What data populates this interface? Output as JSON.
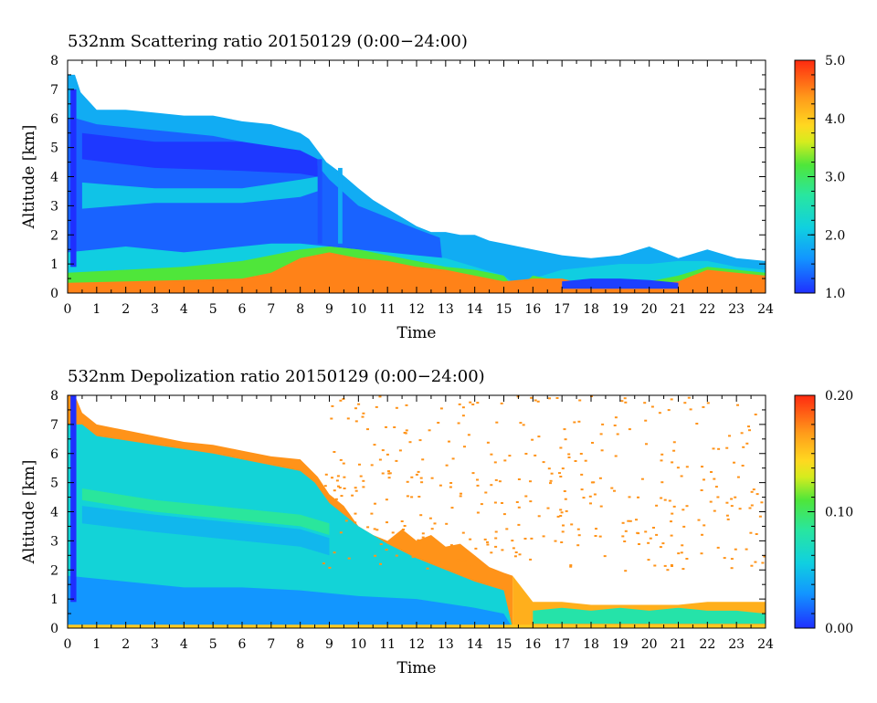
{
  "chart_data": [
    {
      "type": "heatmap",
      "title": "532nm Scattering ratio  20150129 (0:00−24:00)",
      "xlabel": "Time",
      "ylabel": "Altitude [km]",
      "xlim": [
        0,
        24
      ],
      "ylim": [
        0,
        8
      ],
      "x_ticks": [
        0,
        1,
        2,
        3,
        4,
        5,
        6,
        7,
        8,
        9,
        10,
        11,
        12,
        13,
        14,
        15,
        16,
        17,
        18,
        19,
        20,
        21,
        22,
        23,
        24
      ],
      "y_ticks": [
        0,
        1,
        2,
        3,
        4,
        5,
        6,
        7,
        8
      ],
      "colorbar": {
        "range": [
          1.0,
          5.0
        ],
        "ticks": [
          "1.0",
          "2.0",
          "3.0",
          "4.0",
          "5.0"
        ]
      },
      "layers": [
        {
          "kind": "top",
          "value": 1.8,
          "ts": [
            0,
            0.25,
            0.45,
            1,
            2,
            3,
            4,
            5,
            6,
            7,
            8,
            8.3,
            8.9,
            9.3,
            10,
            10.5,
            11,
            11.5,
            12,
            12.5,
            13,
            13.5,
            14,
            14.5,
            15,
            16,
            17,
            18,
            19,
            20,
            21,
            22,
            23,
            24
          ],
          "tops": [
            7.5,
            7.5,
            6.9,
            6.3,
            6.3,
            6.2,
            6.1,
            6.1,
            5.9,
            5.8,
            5.5,
            5.3,
            4.5,
            4.2,
            3.6,
            3.2,
            2.9,
            2.6,
            2.3,
            2.1,
            2.1,
            2.0,
            2.0,
            1.8,
            1.7,
            1.5,
            1.3,
            1.2,
            1.3,
            1.6,
            1.2,
            1.5,
            1.2,
            1.1
          ]
        },
        {
          "kind": "top",
          "value": 1.3,
          "ts": [
            0,
            0.3,
            1,
            3,
            5,
            7,
            8,
            8.5,
            9,
            10,
            11,
            12,
            12.8,
            13
          ],
          "tops": [
            6.0,
            6.0,
            5.8,
            5.6,
            5.4,
            5.0,
            4.9,
            4.5,
            3.9,
            3.0,
            2.6,
            2.2,
            1.9,
            0
          ]
        },
        {
          "kind": "band",
          "value": 1.05,
          "ts": [
            0.5,
            3,
            6,
            8,
            8.6
          ],
          "lo": [
            4.6,
            4.3,
            4.2,
            4.1,
            4.0
          ],
          "hi": [
            5.5,
            5.2,
            5.2,
            4.9,
            4.6
          ]
        },
        {
          "kind": "band",
          "value": 2.0,
          "ts": [
            0.5,
            3,
            6,
            8,
            8.6
          ],
          "lo": [
            2.9,
            3.1,
            3.1,
            3.3,
            3.5
          ],
          "hi": [
            3.8,
            3.6,
            3.6,
            3.9,
            4.0
          ]
        },
        {
          "kind": "top",
          "value": 2.1,
          "ts": [
            0,
            1,
            2,
            3,
            4,
            5,
            6,
            7,
            8,
            9,
            10,
            11,
            12,
            13,
            14,
            15,
            15.4,
            16,
            17,
            18,
            19,
            20,
            21,
            22,
            23,
            24
          ],
          "tops": [
            1.4,
            1.5,
            1.6,
            1.5,
            1.4,
            1.5,
            1.6,
            1.7,
            1.7,
            1.6,
            1.5,
            1.4,
            1.3,
            1.2,
            0.9,
            0.6,
            0.3,
            0.5,
            0.8,
            0.9,
            1.0,
            1.0,
            1.1,
            1.1,
            0.9,
            0.8
          ]
        },
        {
          "kind": "top",
          "value": 3.2,
          "ts": [
            0,
            2,
            4,
            6,
            7,
            8,
            9,
            10,
            11,
            12,
            13,
            14,
            15,
            15.4,
            16,
            17,
            18,
            19,
            20,
            21,
            22,
            23,
            24
          ],
          "tops": [
            0.7,
            0.8,
            0.9,
            1.1,
            1.3,
            1.5,
            1.6,
            1.5,
            1.3,
            1.1,
            0.9,
            0.8,
            0.6,
            0.1,
            0.6,
            0.4,
            0.4,
            0.4,
            0.4,
            0.6,
            0.9,
            0.8,
            0.7
          ]
        },
        {
          "kind": "top",
          "value": 4.5,
          "ts": [
            0,
            2,
            4,
            6,
            7,
            8,
            9,
            10,
            11,
            12,
            13,
            14,
            15,
            16,
            17,
            18,
            19,
            20,
            21,
            22,
            23,
            24
          ],
          "tops": [
            0.35,
            0.4,
            0.45,
            0.5,
            0.7,
            1.2,
            1.4,
            1.2,
            1.1,
            0.9,
            0.8,
            0.6,
            0.4,
            0.5,
            0.5,
            0.25,
            0.3,
            0.3,
            0.4,
            0.8,
            0.7,
            0.6
          ]
        },
        {
          "kind": "band",
          "value": 1.1,
          "ts": [
            17,
            18,
            19,
            20,
            21
          ],
          "lo": [
            0.15,
            0.15,
            0.15,
            0.15,
            0.15
          ],
          "hi": [
            0.4,
            0.5,
            0.5,
            0.45,
            0.35
          ]
        },
        {
          "kind": "vstrip",
          "value": 1.0,
          "t0": 0.1,
          "t1": 0.3,
          "lo": 0.9,
          "hi": 7.0
        },
        {
          "kind": "vstrip",
          "value": 1.2,
          "t0": 8.6,
          "t1": 8.75,
          "lo": 1.7,
          "hi": 4.6
        },
        {
          "kind": "vstrip",
          "value": 1.8,
          "t0": 9.3,
          "t1": 9.45,
          "lo": 1.7,
          "hi": 4.3
        }
      ]
    },
    {
      "type": "heatmap",
      "title": "532nm Depolization ratio  20150129 (0:00−24:00)",
      "xlabel": "Time",
      "ylabel": "Altitude [km]",
      "xlim": [
        0,
        24
      ],
      "ylim": [
        0,
        8
      ],
      "x_ticks": [
        0,
        1,
        2,
        3,
        4,
        5,
        6,
        7,
        8,
        9,
        10,
        11,
        12,
        13,
        14,
        15,
        16,
        17,
        18,
        19,
        20,
        21,
        22,
        23,
        24
      ],
      "y_ticks": [
        0,
        1,
        2,
        3,
        4,
        5,
        6,
        7,
        8
      ],
      "colorbar": {
        "range": [
          0.0,
          0.2
        ],
        "ticks": [
          "0.00",
          "0.10",
          "0.20"
        ]
      },
      "layers": [
        {
          "kind": "top",
          "value": 0.17,
          "ts": [
            0,
            0.25,
            0.5,
            1,
            2,
            3,
            4,
            5,
            6,
            7,
            8,
            8.6,
            9,
            9.5,
            10,
            10.5,
            11,
            11.5,
            12,
            12.5,
            13,
            13.5,
            14,
            14.5,
            15,
            15.3
          ],
          "tops": [
            8,
            8,
            7.4,
            7.0,
            6.8,
            6.6,
            6.4,
            6.3,
            6.1,
            5.9,
            5.8,
            5.2,
            4.6,
            4.2,
            3.5,
            3.2,
            3.0,
            3.4,
            3.0,
            3.2,
            2.8,
            2.9,
            2.5,
            2.1,
            1.9,
            1.8
          ]
        },
        {
          "kind": "top",
          "value": 0.06,
          "ts": [
            0,
            0.5,
            1,
            3,
            5,
            7,
            8,
            8.5,
            9,
            10,
            11,
            12,
            13,
            13.5,
            14,
            15,
            15.3
          ],
          "tops": [
            7.0,
            7.0,
            6.6,
            6.3,
            6.0,
            5.6,
            5.4,
            5.0,
            4.3,
            3.5,
            2.9,
            2.4,
            2.0,
            1.8,
            1.6,
            1.3,
            0
          ]
        },
        {
          "kind": "band",
          "value": 0.085,
          "ts": [
            0.5,
            3,
            6,
            8,
            9
          ],
          "lo": [
            4.4,
            4.0,
            3.7,
            3.5,
            3.2
          ],
          "hi": [
            4.8,
            4.4,
            4.1,
            3.9,
            3.6
          ]
        },
        {
          "kind": "band",
          "value": 0.045,
          "ts": [
            0.5,
            3,
            6,
            8,
            9
          ],
          "lo": [
            3.6,
            3.3,
            3.0,
            2.8,
            2.5
          ],
          "hi": [
            4.2,
            3.9,
            3.6,
            3.4,
            3.1
          ]
        },
        {
          "kind": "top",
          "value": 0.03,
          "ts": [
            0,
            2,
            4,
            6,
            8,
            10,
            12,
            14,
            15,
            15.3
          ],
          "tops": [
            1.8,
            1.6,
            1.4,
            1.4,
            1.3,
            1.1,
            1.0,
            0.7,
            0.5,
            0
          ]
        },
        {
          "kind": "top",
          "value": 0.16,
          "ts": [
            15.3,
            16,
            17,
            18,
            19,
            20,
            21,
            22,
            23,
            24
          ],
          "tops": [
            1.8,
            0.9,
            0.9,
            0.8,
            0.8,
            0.8,
            0.8,
            0.9,
            0.9,
            0.9
          ]
        },
        {
          "kind": "band",
          "value": 0.08,
          "ts": [
            16,
            17,
            18,
            19,
            20,
            21,
            22,
            23,
            24
          ],
          "lo": [
            0.15,
            0.15,
            0.15,
            0.15,
            0.15,
            0.15,
            0.15,
            0.15,
            0.15
          ],
          "hi": [
            0.6,
            0.7,
            0.6,
            0.7,
            0.6,
            0.7,
            0.6,
            0.6,
            0.5
          ]
        },
        {
          "kind": "top",
          "value": 0.15,
          "ts": [
            0,
            24
          ],
          "tops": [
            0.12,
            0.12
          ]
        },
        {
          "kind": "vstrip",
          "value": 0.0,
          "t0": 0.1,
          "t1": 0.3,
          "lo": 0.9,
          "hi": 8.0
        },
        {
          "kind": "speckle",
          "value": 0.17,
          "t0": 8.7,
          "t1": 24,
          "lo": 2.0,
          "hi": 8.0,
          "count": 380
        }
      ]
    }
  ]
}
